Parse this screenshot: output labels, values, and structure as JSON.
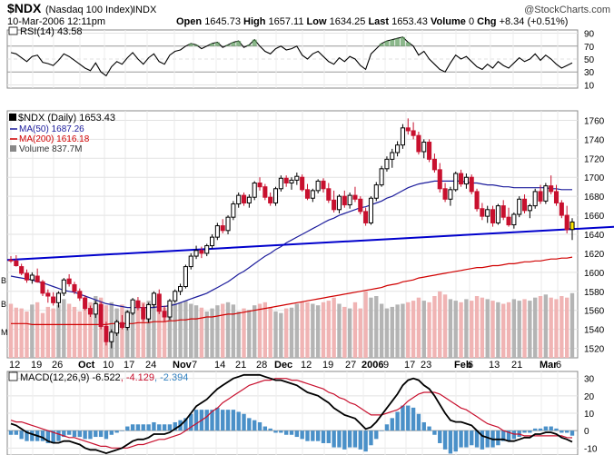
{
  "header": {
    "symbol": "$NDX",
    "name": "(Nasdaq 100 Index)",
    "exchange": "INDX",
    "date_time": "10-Mar-2006 12:11pm",
    "copyright": "@StockCharts.com",
    "open_label": "Open",
    "open": "1645.73",
    "high_label": "High",
    "high": "1657.11",
    "low_label": "Low",
    "low": "1634.25",
    "last_label": "Last",
    "last": "1653.43",
    "volume_label": "Volume",
    "volume": "0",
    "chg_label": "Chg",
    "chg": "+8.34 (+0.51%)"
  },
  "rsi_panel": {
    "label": "RSI(14)",
    "value": "43.58",
    "ticks": [
      "90",
      "70",
      "50",
      "30",
      "10"
    ]
  },
  "price_panel": {
    "legend_symbol": "$NDX (Daily)",
    "legend_value": "1653.43",
    "ma50_label": "MA(50)",
    "ma50_value": "1687.26",
    "ma200_label": "MA(200)",
    "ma200_value": "1616.18",
    "volume_label": "Volume",
    "volume_value": "837.7M",
    "ticks": [
      "1760",
      "1740",
      "1720",
      "1700",
      "1680",
      "1660",
      "1640",
      "1620",
      "1600",
      "1580",
      "1560",
      "1540",
      "1520"
    ],
    "left_marks": [
      "B",
      "B",
      "M"
    ]
  },
  "x_axis": {
    "labels": [
      "12",
      "19",
      "26",
      "Oct",
      "10",
      "17",
      "24",
      "Nov",
      "7",
      "14",
      "21",
      "28",
      "Dec",
      "12",
      "19",
      "27",
      "2006",
      "9",
      "17",
      "23",
      "Feb",
      "6",
      "13",
      "21",
      "Mar",
      "6"
    ],
    "bold": [
      "Oct",
      "Nov",
      "Dec",
      "2006",
      "Feb",
      "Mar"
    ]
  },
  "macd_panel": {
    "label": "MACD(12,26,9)",
    "macd": "-6.522",
    "signal": "-4.129",
    "hist": "-2.394",
    "ticks": [
      "30",
      "20",
      "10",
      "0",
      "-10"
    ]
  },
  "colors": {
    "up": "#000000",
    "down": "#c8102e",
    "ma50": "#1c1c9c",
    "ma200": "#d00000",
    "trend": "#0000cc",
    "vol_up": "#b4b4b4",
    "vol_down": "#f0b4b4",
    "hist": "#4a90c8"
  },
  "chart_data": {
    "type": "candlestick",
    "title": "$NDX (Nasdaq 100 Index) INDX",
    "price_ylim": [
      1510,
      1770
    ],
    "rsi_ylim": [
      5,
      95
    ],
    "macd_ylim": [
      -14,
      34
    ],
    "ohlc": [
      [
        1613,
        1617,
        1610,
        1612
      ],
      [
        1612,
        1618,
        1606,
        1607
      ],
      [
        1606,
        1609,
        1597,
        1599
      ],
      [
        1599,
        1603,
        1589,
        1592
      ],
      [
        1592,
        1600,
        1588,
        1597
      ],
      [
        1596,
        1604,
        1589,
        1590
      ],
      [
        1590,
        1592,
        1575,
        1578
      ],
      [
        1578,
        1582,
        1568,
        1575
      ],
      [
        1574,
        1579,
        1565,
        1568
      ],
      [
        1568,
        1580,
        1563,
        1578
      ],
      [
        1578,
        1594,
        1575,
        1592
      ],
      [
        1593,
        1598,
        1585,
        1588
      ],
      [
        1587,
        1590,
        1577,
        1580
      ],
      [
        1580,
        1583,
        1570,
        1573
      ],
      [
        1573,
        1576,
        1560,
        1562
      ],
      [
        1562,
        1565,
        1553,
        1556
      ],
      [
        1556,
        1570,
        1552,
        1567
      ],
      [
        1566,
        1569,
        1540,
        1543
      ],
      [
        1543,
        1548,
        1523,
        1527
      ],
      [
        1527,
        1540,
        1520,
        1537
      ],
      [
        1536,
        1550,
        1533,
        1548
      ],
      [
        1547,
        1555,
        1540,
        1542
      ],
      [
        1542,
        1560,
        1539,
        1558
      ],
      [
        1557,
        1573,
        1555,
        1571
      ],
      [
        1570,
        1574,
        1560,
        1563
      ],
      [
        1563,
        1567,
        1548,
        1551
      ],
      [
        1551,
        1568,
        1547,
        1566
      ],
      [
        1566,
        1580,
        1563,
        1578
      ],
      [
        1577,
        1582,
        1556,
        1559
      ],
      [
        1559,
        1565,
        1548,
        1553
      ],
      [
        1553,
        1572,
        1550,
        1570
      ],
      [
        1570,
        1582,
        1568,
        1580
      ],
      [
        1580,
        1588,
        1576,
        1585
      ],
      [
        1585,
        1608,
        1583,
        1606
      ],
      [
        1606,
        1620,
        1603,
        1617
      ],
      [
        1617,
        1628,
        1614,
        1623
      ],
      [
        1623,
        1627,
        1615,
        1620
      ],
      [
        1620,
        1630,
        1617,
        1628
      ],
      [
        1628,
        1640,
        1625,
        1637
      ],
      [
        1637,
        1652,
        1634,
        1649
      ],
      [
        1649,
        1656,
        1641,
        1644
      ],
      [
        1644,
        1660,
        1640,
        1658
      ],
      [
        1658,
        1675,
        1655,
        1672
      ],
      [
        1672,
        1684,
        1668,
        1681
      ],
      [
        1681,
        1684,
        1670,
        1673
      ],
      [
        1673,
        1682,
        1668,
        1679
      ],
      [
        1679,
        1696,
        1676,
        1694
      ],
      [
        1694,
        1700,
        1686,
        1690
      ],
      [
        1690,
        1693,
        1676,
        1679
      ],
      [
        1679,
        1684,
        1670,
        1673
      ],
      [
        1673,
        1690,
        1670,
        1688
      ],
      [
        1688,
        1702,
        1685,
        1699
      ],
      [
        1699,
        1702,
        1690,
        1694
      ],
      [
        1694,
        1700,
        1687,
        1697
      ],
      [
        1697,
        1705,
        1692,
        1701
      ],
      [
        1700,
        1703,
        1685,
        1687
      ],
      [
        1687,
        1693,
        1676,
        1678
      ],
      [
        1678,
        1688,
        1674,
        1686
      ],
      [
        1686,
        1698,
        1683,
        1696
      ],
      [
        1696,
        1699,
        1684,
        1688
      ],
      [
        1688,
        1694,
        1673,
        1676
      ],
      [
        1676,
        1686,
        1663,
        1666
      ],
      [
        1666,
        1682,
        1662,
        1680
      ],
      [
        1680,
        1686,
        1668,
        1671
      ],
      [
        1671,
        1684,
        1667,
        1681
      ],
      [
        1681,
        1690,
        1674,
        1677
      ],
      [
        1677,
        1680,
        1661,
        1664
      ],
      [
        1664,
        1668,
        1649,
        1652
      ],
      [
        1652,
        1680,
        1650,
        1678
      ],
      [
        1678,
        1695,
        1675,
        1692
      ],
      [
        1692,
        1712,
        1690,
        1709
      ],
      [
        1709,
        1722,
        1706,
        1719
      ],
      [
        1719,
        1730,
        1710,
        1726
      ],
      [
        1726,
        1738,
        1722,
        1734
      ],
      [
        1734,
        1756,
        1730,
        1752
      ],
      [
        1752,
        1762,
        1745,
        1749
      ],
      [
        1749,
        1758,
        1740,
        1744
      ],
      [
        1744,
        1748,
        1724,
        1727
      ],
      [
        1727,
        1740,
        1720,
        1737
      ],
      [
        1737,
        1740,
        1716,
        1719
      ],
      [
        1719,
        1725,
        1705,
        1708
      ],
      [
        1708,
        1715,
        1684,
        1688
      ],
      [
        1688,
        1694,
        1674,
        1677
      ],
      [
        1677,
        1690,
        1670,
        1687
      ],
      [
        1687,
        1706,
        1685,
        1704
      ],
      [
        1704,
        1708,
        1690,
        1693
      ],
      [
        1693,
        1704,
        1688,
        1700
      ],
      [
        1700,
        1703,
        1682,
        1685
      ],
      [
        1685,
        1688,
        1664,
        1667
      ],
      [
        1667,
        1673,
        1655,
        1659
      ],
      [
        1659,
        1670,
        1652,
        1666
      ],
      [
        1666,
        1670,
        1648,
        1652
      ],
      [
        1652,
        1672,
        1650,
        1670
      ],
      [
        1670,
        1676,
        1655,
        1658
      ],
      [
        1658,
        1668,
        1648,
        1650
      ],
      [
        1650,
        1663,
        1646,
        1661
      ],
      [
        1661,
        1680,
        1658,
        1677
      ],
      [
        1677,
        1682,
        1662,
        1665
      ],
      [
        1665,
        1672,
        1657,
        1670
      ],
      [
        1670,
        1688,
        1667,
        1685
      ],
      [
        1685,
        1692,
        1672,
        1675
      ],
      [
        1675,
        1694,
        1672,
        1691
      ],
      [
        1691,
        1702,
        1682,
        1685
      ],
      [
        1685,
        1692,
        1670,
        1673
      ],
      [
        1673,
        1676,
        1657,
        1660
      ],
      [
        1660,
        1670,
        1641,
        1645
      ],
      [
        1645,
        1657,
        1634,
        1653
      ]
    ],
    "volume_millions": [
      700,
      650,
      640,
      600,
      690,
      720,
      580,
      660,
      640,
      690,
      760,
      700,
      660,
      600,
      700,
      720,
      800,
      780,
      680,
      720,
      640,
      690,
      620,
      640,
      700,
      720,
      740,
      680,
      660,
      650,
      700,
      710,
      720,
      740,
      700,
      680,
      650,
      600,
      640,
      680,
      700,
      720,
      690,
      600,
      640,
      620,
      680,
      700,
      720,
      660,
      600,
      580,
      640,
      650,
      700,
      730,
      720,
      700,
      680,
      720,
      740,
      780,
      700,
      660,
      640,
      720,
      640,
      860,
      780,
      800,
      700,
      640,
      660,
      690,
      700,
      720,
      740,
      780,
      740,
      720,
      800,
      860,
      820,
      760,
      740,
      720,
      760,
      740,
      800,
      780,
      760,
      740,
      720,
      700,
      720,
      760,
      740,
      760,
      740,
      780,
      800,
      820,
      780,
      760,
      800,
      780,
      838
    ],
    "ma50": [
      1596,
      1595,
      1594,
      1593,
      1592,
      1590,
      1589,
      1587,
      1585,
      1583,
      1581,
      1580,
      1579,
      1577,
      1575,
      1573,
      1571,
      1569,
      1567,
      1566,
      1565,
      1564,
      1563,
      1563,
      1563,
      1563,
      1563,
      1563,
      1564,
      1564,
      1565,
      1566,
      1568,
      1570,
      1572,
      1574,
      1576,
      1578,
      1581,
      1584,
      1587,
      1590,
      1594,
      1598,
      1601,
      1605,
      1609,
      1613,
      1617,
      1620,
      1624,
      1627,
      1631,
      1634,
      1637,
      1640,
      1643,
      1646,
      1649,
      1652,
      1655,
      1657,
      1660,
      1662,
      1664,
      1666,
      1668,
      1669,
      1671,
      1673,
      1675,
      1678,
      1680,
      1683,
      1686,
      1689,
      1691,
      1693,
      1694,
      1695,
      1696,
      1696,
      1696,
      1696,
      1696,
      1696,
      1695,
      1694,
      1694,
      1693,
      1692,
      1692,
      1691,
      1690,
      1690,
      1689,
      1689,
      1689,
      1689,
      1689,
      1689,
      1689,
      1688,
      1688,
      1687,
      1687,
      1687
    ],
    "ma200": [
      1546,
      1546,
      1546,
      1546,
      1545,
      1545,
      1545,
      1545,
      1545,
      1545,
      1545,
      1545,
      1545,
      1545,
      1545,
      1545,
      1545,
      1545,
      1545,
      1546,
      1546,
      1546,
      1546,
      1546,
      1547,
      1547,
      1547,
      1548,
      1548,
      1548,
      1549,
      1549,
      1550,
      1550,
      1551,
      1551,
      1552,
      1553,
      1553,
      1554,
      1555,
      1556,
      1556,
      1557,
      1558,
      1559,
      1560,
      1561,
      1562,
      1563,
      1564,
      1565,
      1566,
      1567,
      1568,
      1569,
      1570,
      1571,
      1572,
      1573,
      1574,
      1575,
      1576,
      1577,
      1578,
      1579,
      1580,
      1581,
      1582,
      1583,
      1584,
      1586,
      1587,
      1588,
      1590,
      1591,
      1592,
      1594,
      1595,
      1596,
      1597,
      1598,
      1599,
      1600,
      1601,
      1602,
      1603,
      1604,
      1605,
      1605,
      1606,
      1607,
      1607,
      1608,
      1609,
      1609,
      1610,
      1611,
      1611,
      1612,
      1612,
      1613,
      1614,
      1614,
      1615,
      1615,
      1616
    ],
    "trendline": [
      [
        0,
        1613
      ],
      [
        106,
        1646
      ]
    ],
    "rsi": [
      60,
      58,
      52,
      46,
      54,
      56,
      45,
      43,
      40,
      48,
      58,
      54,
      48,
      42,
      36,
      32,
      44,
      30,
      24,
      38,
      46,
      42,
      52,
      60,
      50,
      42,
      52,
      58,
      46,
      42,
      56,
      62,
      64,
      70,
      74,
      72,
      66,
      70,
      74,
      76,
      68,
      72,
      76,
      78,
      68,
      72,
      80,
      70,
      62,
      58,
      66,
      70,
      64,
      66,
      70,
      56,
      50,
      58,
      62,
      54,
      46,
      42,
      52,
      46,
      54,
      50,
      40,
      34,
      58,
      66,
      74,
      78,
      80,
      82,
      84,
      76,
      70,
      56,
      62,
      50,
      42,
      34,
      30,
      44,
      56,
      50,
      54,
      46,
      38,
      34,
      42,
      36,
      46,
      40,
      36,
      44,
      52,
      46,
      50,
      58,
      48,
      56,
      50,
      42,
      36,
      40,
      44
    ],
    "macd": [
      4,
      3,
      1,
      -1,
      -2,
      -3,
      -4,
      -6,
      -7,
      -7,
      -6,
      -6,
      -7,
      -8,
      -10,
      -11,
      -11,
      -12,
      -13,
      -12,
      -11,
      -10,
      -8,
      -6,
      -5,
      -5,
      -4,
      -2,
      -2,
      -2,
      -1,
      1,
      3,
      6,
      10,
      14,
      16,
      18,
      21,
      24,
      26,
      28,
      30,
      31,
      32,
      32,
      32,
      32,
      31,
      30,
      29,
      29,
      28,
      27,
      26,
      24,
      22,
      21,
      20,
      18,
      16,
      13,
      11,
      9,
      8,
      7,
      4,
      1,
      2,
      5,
      9,
      13,
      17,
      21,
      26,
      29,
      30,
      29,
      26,
      24,
      20,
      15,
      10,
      6,
      5,
      5,
      4,
      3,
      0,
      -3,
      -4,
      -5,
      -5,
      -5,
      -6,
      -6,
      -5,
      -4,
      -4,
      -2,
      -2,
      -1,
      -1,
      -2,
      -4,
      -5,
      -6.5
    ],
    "signal": [
      6,
      5,
      5,
      4,
      3,
      2,
      1,
      0,
      -1,
      -2,
      -3,
      -4,
      -4,
      -5,
      -6,
      -7,
      -8,
      -9,
      -9,
      -10,
      -10,
      -10,
      -10,
      -9,
      -8,
      -8,
      -7,
      -6,
      -5,
      -5,
      -4,
      -3,
      -2,
      0,
      2,
      4,
      6,
      8,
      11,
      13,
      16,
      18,
      20,
      22,
      24,
      26,
      27,
      28,
      29,
      29,
      30,
      30,
      30,
      29,
      29,
      28,
      27,
      26,
      25,
      24,
      22,
      21,
      19,
      18,
      16,
      15,
      13,
      11,
      9,
      9,
      9,
      10,
      11,
      12,
      14,
      17,
      19,
      21,
      22,
      22,
      22,
      21,
      19,
      17,
      15,
      13,
      12,
      10,
      8,
      6,
      4,
      3,
      2,
      0,
      -1,
      -2,
      -2,
      -3,
      -3,
      -3,
      -3,
      -3,
      -3,
      -3,
      -3,
      -4,
      -4.1
    ]
  }
}
